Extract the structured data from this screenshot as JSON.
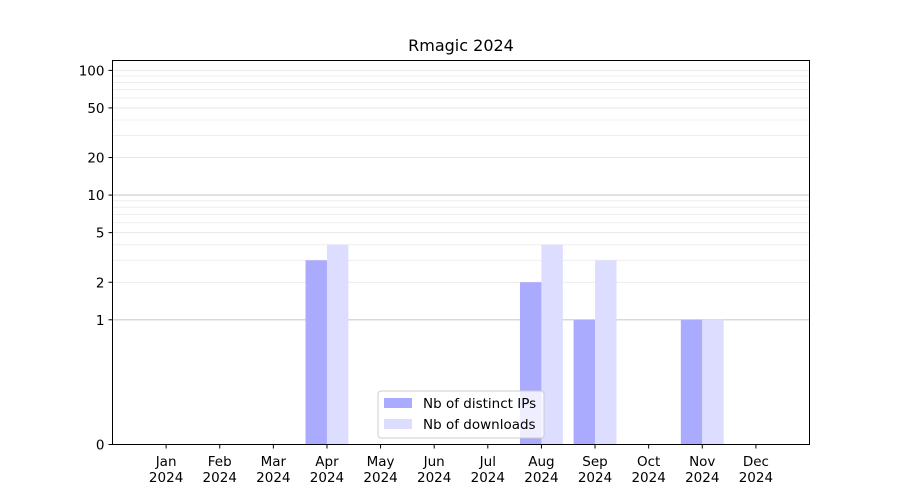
{
  "chart_data": {
    "type": "bar",
    "title": "Rmagic 2024",
    "xlabel": "",
    "ylabel": "",
    "y_scale": "symlog",
    "ylim": [
      0,
      120
    ],
    "y_ticks": [
      0,
      1,
      2,
      5,
      10,
      20,
      50,
      100
    ],
    "categories": [
      {
        "month": "Jan",
        "year": "2024"
      },
      {
        "month": "Feb",
        "year": "2024"
      },
      {
        "month": "Mar",
        "year": "2024"
      },
      {
        "month": "Apr",
        "year": "2024"
      },
      {
        "month": "May",
        "year": "2024"
      },
      {
        "month": "Jun",
        "year": "2024"
      },
      {
        "month": "Jul",
        "year": "2024"
      },
      {
        "month": "Aug",
        "year": "2024"
      },
      {
        "month": "Sep",
        "year": "2024"
      },
      {
        "month": "Oct",
        "year": "2024"
      },
      {
        "month": "Nov",
        "year": "2024"
      },
      {
        "month": "Dec",
        "year": "2024"
      }
    ],
    "series": [
      {
        "name": "Nb of distinct IPs",
        "color": "#aaaaff",
        "values": [
          0,
          0,
          0,
          3,
          0,
          0,
          0,
          2,
          1,
          0,
          1,
          0
        ]
      },
      {
        "name": "Nb of downloads",
        "color": "#ddddff",
        "values": [
          0,
          0,
          0,
          4,
          0,
          0,
          0,
          4,
          3,
          0,
          1,
          0
        ]
      }
    ],
    "grid": true,
    "legend_position": "bottom-center"
  }
}
